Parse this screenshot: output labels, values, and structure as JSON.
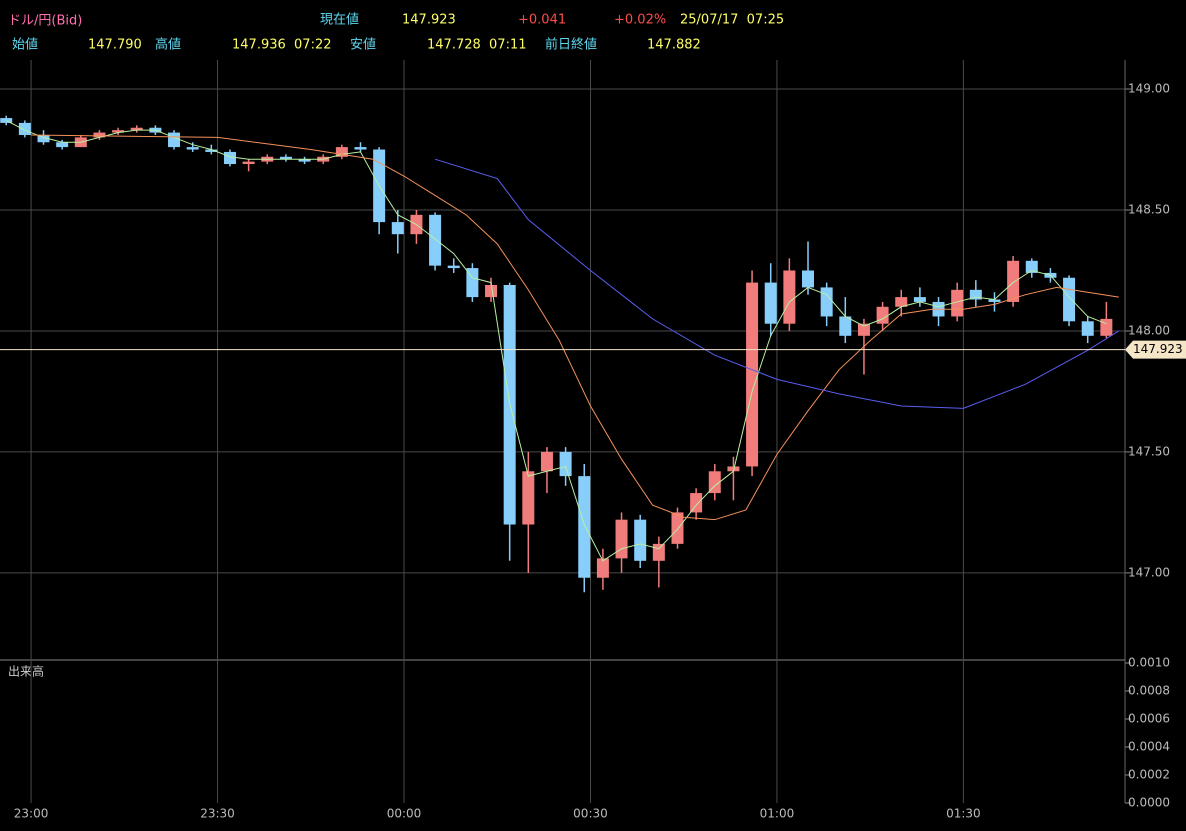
{
  "header": {
    "title": "ドル/円(Bid)",
    "current": {
      "label": "現在値",
      "value": "147.923",
      "change": "+0.041",
      "change_pct": "+0.02%",
      "datetime": "25/07/17  07:25"
    },
    "stats": [
      {
        "label": "始値",
        "value": "147.790"
      },
      {
        "label": "高値",
        "value": "147.936  07:22"
      },
      {
        "label": "安値",
        "value": "147.728  07:11"
      },
      {
        "label": "前日終値",
        "value": "147.882"
      }
    ]
  },
  "chart_data": {
    "type": "candlestick",
    "up_color": "#f07c7c",
    "down_color": "#87cefa",
    "grid": true,
    "xlim": [
      1375,
      1556
    ],
    "xticks": [
      {
        "value": 1380,
        "label": "23:00"
      },
      {
        "value": 1410,
        "label": "23:30"
      },
      {
        "value": 1440,
        "label": "00:00"
      },
      {
        "value": 1470,
        "label": "00:30"
      },
      {
        "value": 1500,
        "label": "01:00"
      },
      {
        "value": 1530,
        "label": "01:30"
      }
    ],
    "ylim": [
      146.64,
      149.12
    ],
    "yticks": [
      {
        "value": 147,
        "label": "147.00"
      },
      {
        "value": 147.5,
        "label": "147.50"
      },
      {
        "value": 148,
        "label": "148.00"
      },
      {
        "value": 148.5,
        "label": "148.50"
      },
      {
        "value": 149,
        "label": "149.00"
      }
    ],
    "last_price": {
      "value": 147.923,
      "label": "147.923",
      "color": "#f5e6c8"
    },
    "candles": {
      "x": [
        1376,
        1379,
        1382,
        1385,
        1388,
        1391,
        1394,
        1397,
        1400,
        1403,
        1406,
        1409,
        1412,
        1415,
        1418,
        1421,
        1424,
        1427,
        1430,
        1433,
        1436,
        1439,
        1442,
        1445,
        1448,
        1451,
        1454,
        1457,
        1460,
        1463,
        1466,
        1469,
        1472,
        1475,
        1478,
        1481,
        1484,
        1487,
        1490,
        1493,
        1496,
        1499,
        1502,
        1505,
        1508,
        1511,
        1514,
        1517,
        1520,
        1523,
        1526,
        1529,
        1532,
        1535,
        1538,
        1541,
        1544,
        1547,
        1550,
        1553
      ],
      "open": [
        148.88,
        148.86,
        148.81,
        148.78,
        148.76,
        148.8,
        148.82,
        148.83,
        148.84,
        148.82,
        148.76,
        148.75,
        148.74,
        148.69,
        148.7,
        148.72,
        148.71,
        148.7,
        148.72,
        148.76,
        148.75,
        148.45,
        148.4,
        148.48,
        148.27,
        148.26,
        148.14,
        148.19,
        147.2,
        147.42,
        147.5,
        147.4,
        146.98,
        147.06,
        147.22,
        147.05,
        147.12,
        147.25,
        147.33,
        147.42,
        147.44,
        148.2,
        148.03,
        148.25,
        148.18,
        148.06,
        147.98,
        148.03,
        148.1,
        148.14,
        148.12,
        148.06,
        148.17,
        148.13,
        148.12,
        148.29,
        148.24,
        148.22,
        148.04,
        147.98
      ],
      "high": [
        148.89,
        148.87,
        148.83,
        148.79,
        148.81,
        148.83,
        148.84,
        148.85,
        148.85,
        148.83,
        148.78,
        148.77,
        148.75,
        148.71,
        148.73,
        148.73,
        148.72,
        148.73,
        148.77,
        148.78,
        148.76,
        148.5,
        148.5,
        148.49,
        148.3,
        148.28,
        148.22,
        148.2,
        147.5,
        147.52,
        147.52,
        147.45,
        147.1,
        147.25,
        147.24,
        147.15,
        147.27,
        147.35,
        147.45,
        147.48,
        148.25,
        148.28,
        148.3,
        148.37,
        148.2,
        148.14,
        148.05,
        148.12,
        148.17,
        148.18,
        148.14,
        148.2,
        148.21,
        148.16,
        148.31,
        148.3,
        148.26,
        148.23,
        148.06,
        148.12
      ],
      "low": [
        148.85,
        148.8,
        148.77,
        148.75,
        148.76,
        148.79,
        148.81,
        148.82,
        148.81,
        148.75,
        148.74,
        148.73,
        148.68,
        148.66,
        148.69,
        148.7,
        148.69,
        148.69,
        148.71,
        148.74,
        148.4,
        148.32,
        148.36,
        148.25,
        148.24,
        148.12,
        148.12,
        147.05,
        147.0,
        147.33,
        147.36,
        146.92,
        146.93,
        147.0,
        147.02,
        146.94,
        147.1,
        147.22,
        147.3,
        147.3,
        147.4,
        147.98,
        148.0,
        148.15,
        148.02,
        147.95,
        147.82,
        148.0,
        148.06,
        148.1,
        148.02,
        148.04,
        148.1,
        148.08,
        148.1,
        148.22,
        148.2,
        148.02,
        147.95,
        147.97
      ],
      "close": [
        148.86,
        148.81,
        148.78,
        148.76,
        148.8,
        148.82,
        148.83,
        148.84,
        148.82,
        148.76,
        148.75,
        148.74,
        148.69,
        148.7,
        148.72,
        148.71,
        148.7,
        148.72,
        148.76,
        148.75,
        148.45,
        148.4,
        148.48,
        148.27,
        148.26,
        148.14,
        148.19,
        147.2,
        147.42,
        147.5,
        147.4,
        146.98,
        147.06,
        147.22,
        147.05,
        147.12,
        147.25,
        147.33,
        147.42,
        147.44,
        148.2,
        148.03,
        148.25,
        148.18,
        148.06,
        147.98,
        148.03,
        148.1,
        148.14,
        148.12,
        148.06,
        148.17,
        148.13,
        148.12,
        148.29,
        148.24,
        148.22,
        148.04,
        147.98,
        148.05
      ]
    },
    "lines": [
      {
        "color": "#b8f0a0",
        "x": [
          1376,
          1379,
          1382,
          1385,
          1388,
          1391,
          1394,
          1397,
          1400,
          1403,
          1406,
          1409,
          1412,
          1415,
          1418,
          1421,
          1424,
          1427,
          1430,
          1433,
          1436,
          1439,
          1442,
          1445,
          1448,
          1451,
          1454,
          1457,
          1460,
          1463,
          1466,
          1469,
          1472,
          1475,
          1478,
          1481,
          1484,
          1487,
          1490,
          1493,
          1496,
          1499,
          1502,
          1505,
          1508,
          1511,
          1514,
          1517,
          1520,
          1523,
          1526,
          1529,
          1532,
          1535,
          1538,
          1541,
          1544,
          1547,
          1550,
          1553
        ],
        "values": [
          148.87,
          148.83,
          148.8,
          148.78,
          148.78,
          148.8,
          148.82,
          148.83,
          148.83,
          148.8,
          148.77,
          148.75,
          148.72,
          148.71,
          148.71,
          148.71,
          148.71,
          148.71,
          148.73,
          148.74,
          148.6,
          148.48,
          148.44,
          148.38,
          148.32,
          148.22,
          148.2,
          147.7,
          147.4,
          147.42,
          147.44,
          147.2,
          147.05,
          147.1,
          147.12,
          147.1,
          147.18,
          147.28,
          147.36,
          147.42,
          147.75,
          147.98,
          148.12,
          148.18,
          148.15,
          148.06,
          148.02,
          148.05,
          148.1,
          148.12,
          148.1,
          148.12,
          148.14,
          148.13,
          148.2,
          148.25,
          148.23,
          148.14,
          148.06,
          148.03
        ]
      },
      {
        "color": "#f4915a",
        "x": [
          1380,
          1410,
          1425,
          1435,
          1440,
          1445,
          1450,
          1455,
          1460,
          1465,
          1470,
          1475,
          1480,
          1485,
          1490,
          1495,
          1500,
          1505,
          1510,
          1515,
          1520,
          1525,
          1530,
          1535,
          1540,
          1545,
          1550,
          1555
        ],
        "values": [
          148.81,
          148.8,
          148.75,
          148.71,
          148.64,
          148.56,
          148.48,
          148.36,
          148.17,
          147.96,
          147.69,
          147.47,
          147.28,
          147.23,
          147.22,
          147.26,
          147.49,
          147.67,
          147.84,
          147.96,
          148.07,
          148.09,
          148.09,
          148.11,
          148.15,
          148.18,
          148.16,
          148.14
        ]
      },
      {
        "color": "#5a5ef0",
        "x": [
          1445,
          1455,
          1460,
          1470,
          1480,
          1490,
          1500,
          1510,
          1520,
          1530,
          1540,
          1550,
          1555
        ],
        "values": [
          148.71,
          148.63,
          148.46,
          148.25,
          148.05,
          147.9,
          147.8,
          147.74,
          147.69,
          147.68,
          147.78,
          147.92,
          148.0
        ]
      }
    ],
    "volume": {
      "label": "出来高",
      "ylim": [
        0,
        0.001
      ],
      "yticks": [
        {
          "value": 0,
          "label": "0.0000"
        },
        {
          "value": 0.0002,
          "label": "0.0002"
        },
        {
          "value": 0.0004,
          "label": "0.0004"
        },
        {
          "value": 0.0006,
          "label": "0.0006"
        },
        {
          "value": 0.0008,
          "label": "0.0008"
        },
        {
          "value": 0.001,
          "label": "0.0010"
        }
      ]
    }
  }
}
